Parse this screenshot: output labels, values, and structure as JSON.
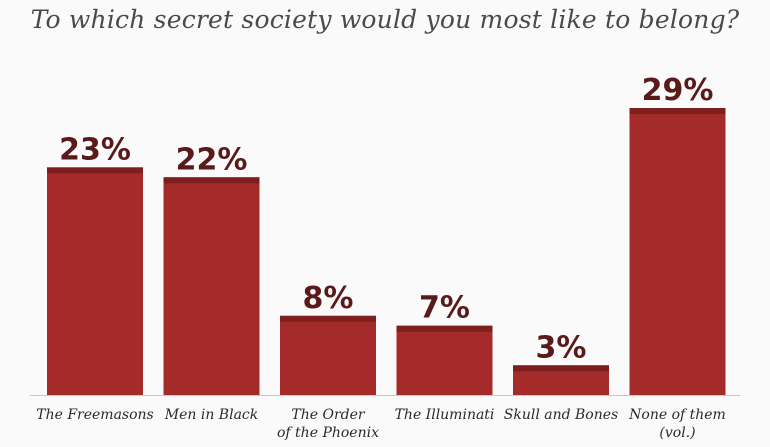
{
  "chart_data": {
    "type": "bar",
    "title": "To which secret society would you most like to belong?",
    "categories": [
      [
        "The Freemasons"
      ],
      [
        "Men in Black"
      ],
      [
        "The Order",
        "of the Phoenix"
      ],
      [
        "The Illuminati"
      ],
      [
        "Skull and Bones"
      ],
      [
        "None of them",
        "(vol.)"
      ]
    ],
    "values": [
      23,
      22,
      8,
      7,
      3,
      29
    ],
    "value_labels": [
      "23%",
      "22%",
      "8%",
      "7%",
      "3%",
      "29%"
    ],
    "ylim": [
      0,
      29
    ],
    "grid": false,
    "xlabel": "",
    "ylabel": ""
  },
  "colors": {
    "bar_fill": "#a52a2a",
    "bar_top": "#7d1f1f",
    "value_text": "#5a1a1a",
    "baseline": "#c8c8c8"
  }
}
